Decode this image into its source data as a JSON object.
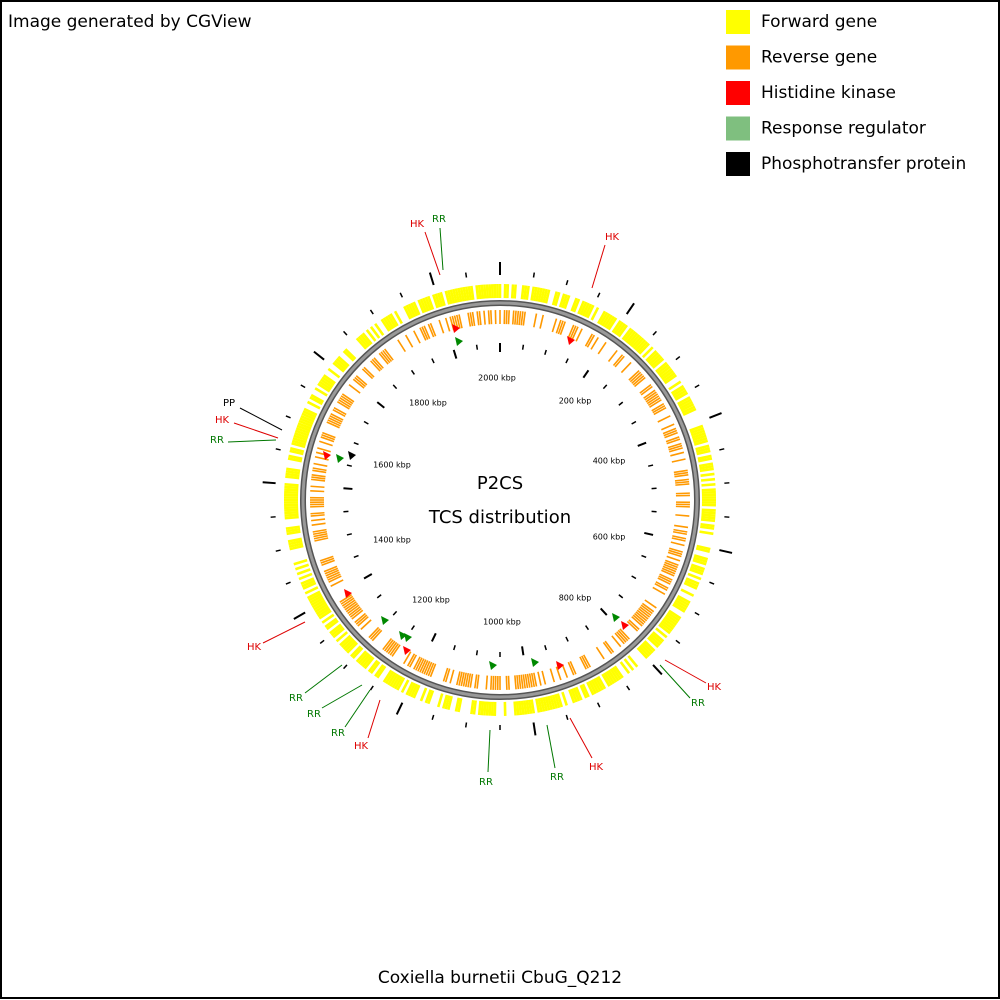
{
  "header": {
    "text": "Image generated by CGView"
  },
  "legend": [
    {
      "label": "Forward gene",
      "color": "#ffff00"
    },
    {
      "label": "Reverse gene",
      "color": "#ff9900"
    },
    {
      "label": "Histidine kinase",
      "color": "#ff0000"
    },
    {
      "label": "Response regulator",
      "color": "#7fbf7f"
    },
    {
      "label": "Phosphotransfer protein",
      "color": "#000000"
    }
  ],
  "map": {
    "title": "P2CS",
    "subtitle": "TCS distribution",
    "scale_labels": [
      "2000 kbp",
      "200 kbp",
      "400 kbp",
      "600 kbp",
      "800 kbp",
      "1000 kbp",
      "1200 kbp",
      "1400 kbp",
      "1600 kbp",
      "1800 kbp"
    ],
    "feature_labels": [
      "HK",
      "RR",
      "HK",
      "PP",
      "HK",
      "RR",
      "HK",
      "RR",
      "RR",
      "RR",
      "HK",
      "RR",
      "RR",
      "HK",
      "HK",
      "RR"
    ]
  },
  "footer": {
    "text": "Coxiella burnetii CbuG_Q212"
  }
}
